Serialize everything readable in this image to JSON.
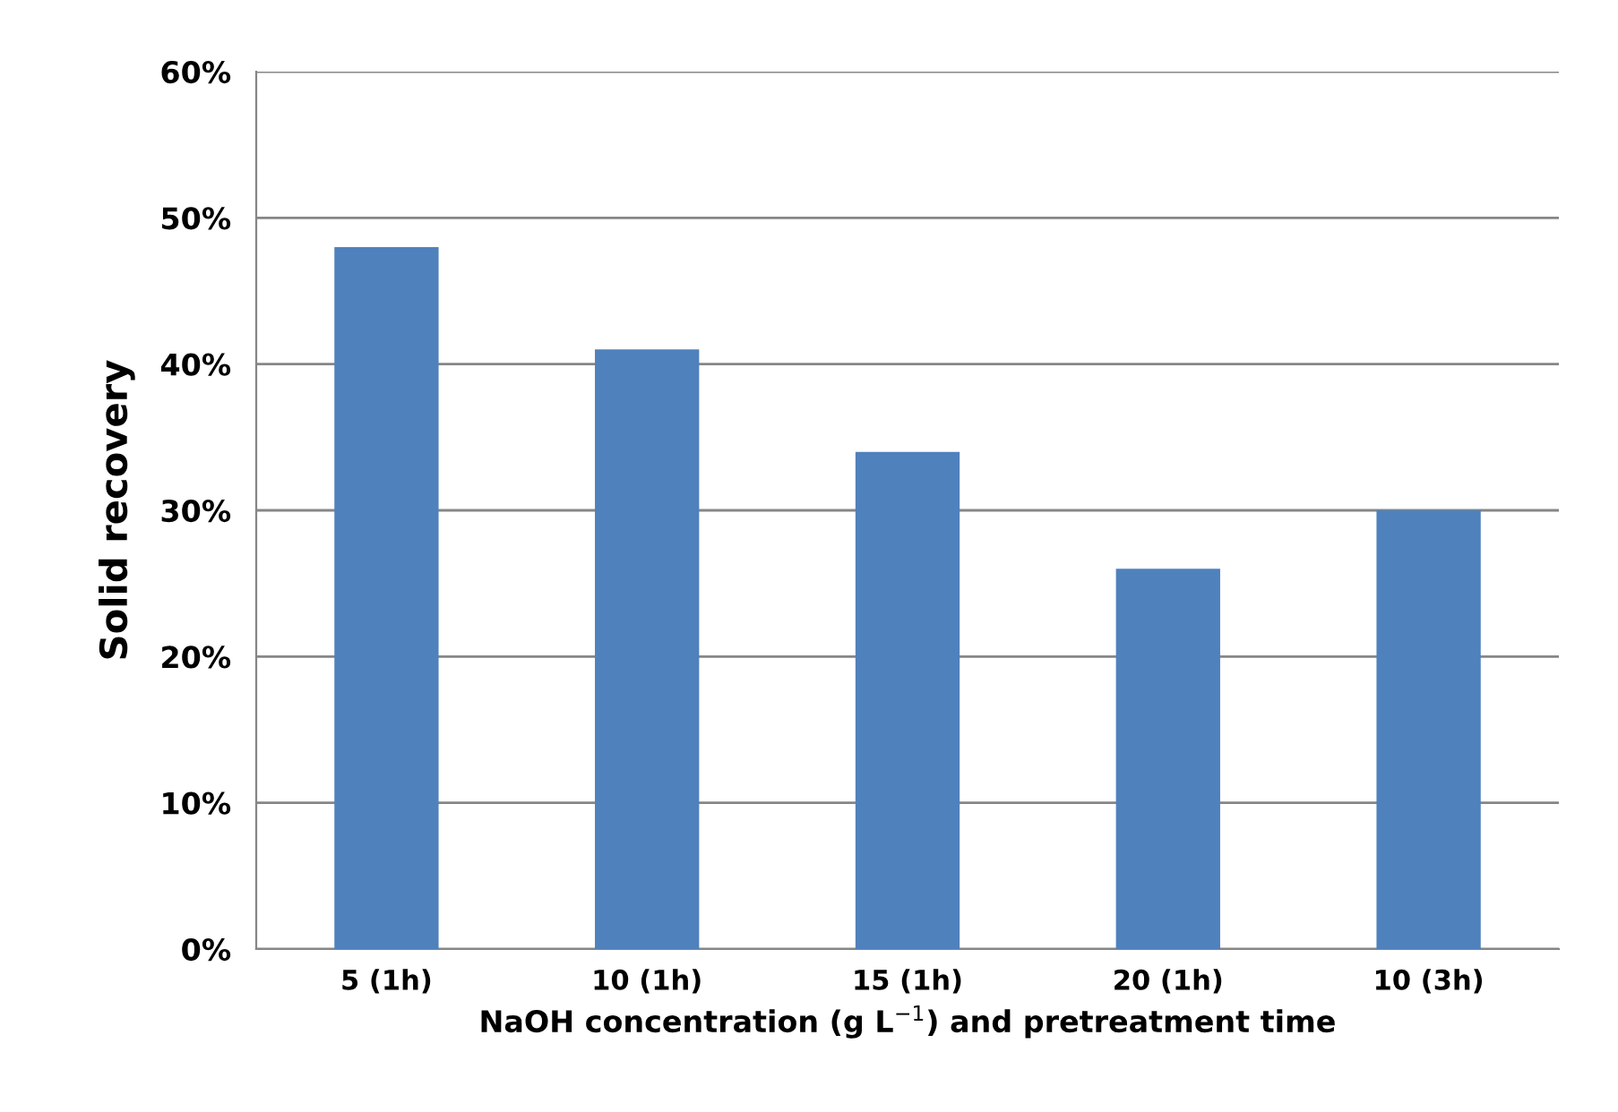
{
  "chart_data": {
    "type": "bar",
    "categories": [
      "5 (1h)",
      "10 (1h)",
      "15 (1h)",
      "20 (1h)",
      "10 (3h)"
    ],
    "values": [
      48,
      41,
      34,
      26,
      30
    ],
    "color": "#4f81bd",
    "xlabel": "NaOH concentration (g L$^{−1}$) and pretreatment time",
    "ylabel": "Solid recovery",
    "ylim": [
      0,
      60
    ],
    "yticks": [
      {
        "value": 0,
        "label": "0%"
      },
      {
        "value": 10,
        "label": "10%"
      },
      {
        "value": 20,
        "label": "20%"
      },
      {
        "value": 30,
        "label": "30%"
      },
      {
        "value": 40,
        "label": "40%"
      },
      {
        "value": 50,
        "label": "50%"
      },
      {
        "value": 60,
        "label": "60%"
      }
    ],
    "grid": "y"
  }
}
